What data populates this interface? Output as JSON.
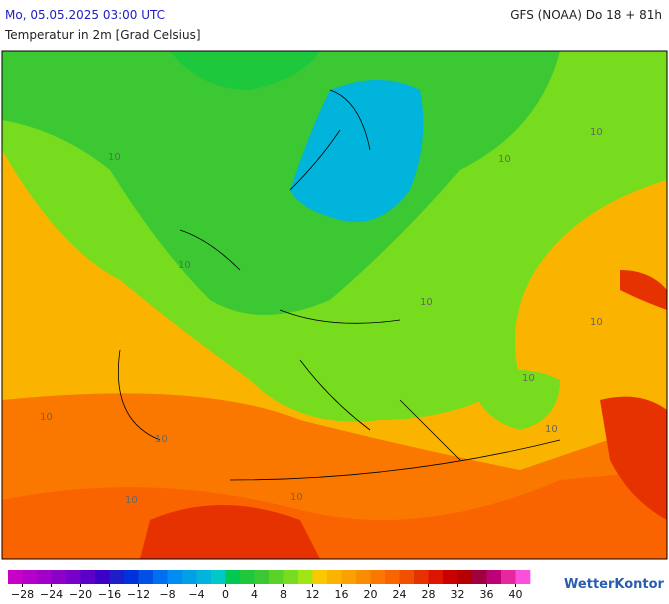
{
  "header": {
    "datetime": "Mo, 05.05.2025 03:00 UTC",
    "model": "GFS (NOAA) Do 18 + 81h",
    "subtitle": "Temperatur in 2m [Grad Celsius]"
  },
  "map": {
    "contour_labels": [
      10,
      10,
      10,
      10,
      10,
      10,
      10,
      10,
      10,
      10,
      10,
      10
    ]
  },
  "legend": {
    "range": [
      -30,
      42
    ],
    "colors": [
      "#c800c8",
      "#b400c8",
      "#a000c8",
      "#8c00c8",
      "#7800c8",
      "#5a00c8",
      "#3c00c8",
      "#1e1ec8",
      "#0032dc",
      "#0050e6",
      "#006ef0",
      "#008cf0",
      "#00a0e6",
      "#00b4dc",
      "#00c8c8",
      "#00c850",
      "#1ec83c",
      "#3cc832",
      "#5ad228",
      "#78dc1e",
      "#a0e614",
      "#fac800",
      "#fab400",
      "#faa000",
      "#fa8c00",
      "#fa7800",
      "#fa6400",
      "#f05000",
      "#e63200",
      "#dc1400",
      "#c80000",
      "#b40000",
      "#a0003c",
      "#be0078",
      "#e6289c",
      "#fa50dc"
    ],
    "ticks": [
      {
        "value": -28,
        "label": "−28"
      },
      {
        "value": -24,
        "label": "−24"
      },
      {
        "value": -20,
        "label": "−20"
      },
      {
        "value": -16,
        "label": "−16"
      },
      {
        "value": -12,
        "label": "−12"
      },
      {
        "value": -8,
        "label": "−8"
      },
      {
        "value": -4,
        "label": "−4"
      },
      0,
      4,
      8,
      12,
      16,
      20,
      24,
      28,
      32,
      36,
      40
    ]
  },
  "brand": "WetterKontor"
}
